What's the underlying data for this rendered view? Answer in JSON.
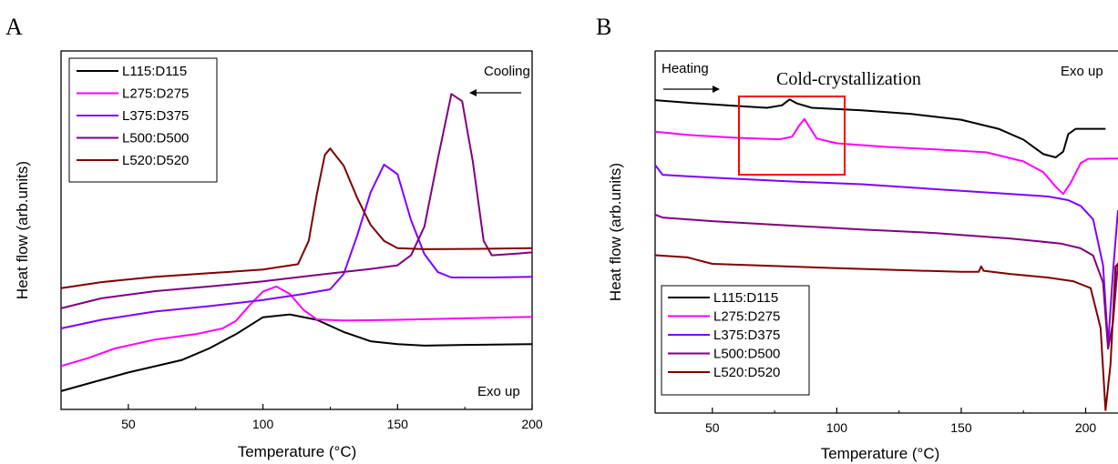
{
  "chart_data": [
    {
      "panel": "A",
      "type": "line",
      "xlabel": "Temperature (°C)",
      "ylabel": "Heat flow (arb.units)",
      "xlim": [
        25,
        200
      ],
      "xticks": [
        50,
        100,
        150,
        200
      ],
      "ylim": [
        0,
        1
      ],
      "yticks_shown": false,
      "grid": false,
      "legend": {
        "placement": "top-left",
        "boxed": true
      },
      "annotations": [
        {
          "text": "Cooling",
          "arrow": "left",
          "placement": "top-right"
        },
        {
          "text": "Exo up",
          "placement": "bottom-right"
        }
      ],
      "series": [
        {
          "name": "L115:D115",
          "color": "#000000",
          "points": [
            [
              25,
              0.051
            ],
            [
              35,
              0.072
            ],
            [
              50,
              0.103
            ],
            [
              70,
              0.138
            ],
            [
              80,
              0.17
            ],
            [
              90,
              0.21
            ],
            [
              100,
              0.257
            ],
            [
              110,
              0.265
            ],
            [
              120,
              0.25
            ],
            [
              130,
              0.216
            ],
            [
              140,
              0.19
            ],
            [
              150,
              0.182
            ],
            [
              160,
              0.178
            ],
            [
              175,
              0.18
            ],
            [
              200,
              0.182
            ]
          ]
        },
        {
          "name": "L275:D275",
          "color": "#ff00ff",
          "points": [
            [
              25,
              0.121
            ],
            [
              35,
              0.143
            ],
            [
              45,
              0.17
            ],
            [
              60,
              0.195
            ],
            [
              75,
              0.21
            ],
            [
              85,
              0.226
            ],
            [
              90,
              0.247
            ],
            [
              95,
              0.29
            ],
            [
              100,
              0.329
            ],
            [
              105,
              0.343
            ],
            [
              110,
              0.322
            ],
            [
              115,
              0.278
            ],
            [
              120,
              0.251
            ],
            [
              130,
              0.248
            ],
            [
              150,
              0.25
            ],
            [
              175,
              0.254
            ],
            [
              200,
              0.258
            ]
          ]
        },
        {
          "name": "L375:D375",
          "color": "#8000ff",
          "points": [
            [
              25,
              0.226
            ],
            [
              40,
              0.25
            ],
            [
              60,
              0.273
            ],
            [
              80,
              0.288
            ],
            [
              100,
              0.305
            ],
            [
              115,
              0.322
            ],
            [
              125,
              0.335
            ],
            [
              130,
              0.378
            ],
            [
              135,
              0.485
            ],
            [
              140,
              0.605
            ],
            [
              145,
              0.683
            ],
            [
              150,
              0.656
            ],
            [
              155,
              0.528
            ],
            [
              160,
              0.433
            ],
            [
              165,
              0.383
            ],
            [
              170,
              0.368
            ],
            [
              185,
              0.368
            ],
            [
              200,
              0.37
            ]
          ]
        },
        {
          "name": "L500:D500",
          "color": "#800080",
          "points": [
            [
              25,
              0.282
            ],
            [
              40,
              0.31
            ],
            [
              60,
              0.33
            ],
            [
              80,
              0.343
            ],
            [
              100,
              0.357
            ],
            [
              120,
              0.375
            ],
            [
              140,
              0.392
            ],
            [
              150,
              0.402
            ],
            [
              155,
              0.43
            ],
            [
              160,
              0.51
            ],
            [
              165,
              0.7
            ],
            [
              170,
              0.88
            ],
            [
              174,
              0.86
            ],
            [
              178,
              0.69
            ],
            [
              182,
              0.47
            ],
            [
              185,
              0.43
            ],
            [
              195,
              0.435
            ],
            [
              200,
              0.438
            ]
          ]
        },
        {
          "name": "L520:D520",
          "color": "#800000",
          "points": [
            [
              25,
              0.338
            ],
            [
              40,
              0.355
            ],
            [
              60,
              0.37
            ],
            [
              80,
              0.38
            ],
            [
              100,
              0.39
            ],
            [
              113,
              0.405
            ],
            [
              117,
              0.47
            ],
            [
              120,
              0.6
            ],
            [
              123,
              0.71
            ],
            [
              125,
              0.728
            ],
            [
              130,
              0.68
            ],
            [
              135,
              0.59
            ],
            [
              140,
              0.515
            ],
            [
              145,
              0.47
            ],
            [
              150,
              0.45
            ],
            [
              160,
              0.447
            ],
            [
              180,
              0.448
            ],
            [
              200,
              0.45
            ]
          ]
        }
      ]
    },
    {
      "panel": "B",
      "type": "line",
      "xlabel": "Temperature (°C)",
      "ylabel": "Heat flow (arb.units)",
      "xlim": [
        27,
        213
      ],
      "xticks": [
        50,
        100,
        150,
        200
      ],
      "ylim": [
        0,
        1
      ],
      "yticks_shown": false,
      "grid": false,
      "legend": {
        "placement": "bottom-left",
        "boxed": true
      },
      "annotations": [
        {
          "text": "Heating",
          "arrow": "right",
          "placement": "top-left"
        },
        {
          "text": "Cold-crystallization",
          "highlight_box": true,
          "x_range": [
            62,
            106
          ],
          "placement": "top"
        },
        {
          "text": "Exo up",
          "placement": "top-right"
        }
      ],
      "series": [
        {
          "name": "L115:D115",
          "color": "#000000",
          "points": [
            [
              27,
              0.864
            ],
            [
              40,
              0.857
            ],
            [
              60,
              0.848
            ],
            [
              72,
              0.843
            ],
            [
              78,
              0.85
            ],
            [
              81,
              0.866
            ],
            [
              84,
              0.855
            ],
            [
              90,
              0.843
            ],
            [
              110,
              0.836
            ],
            [
              130,
              0.826
            ],
            [
              150,
              0.81
            ],
            [
              165,
              0.785
            ],
            [
              175,
              0.755
            ],
            [
              183,
              0.715
            ],
            [
              188,
              0.706
            ],
            [
              191,
              0.722
            ],
            [
              193,
              0.77
            ],
            [
              196,
              0.785
            ],
            [
              208,
              0.785
            ]
          ]
        },
        {
          "name": "L275:D275",
          "color": "#ff00ff",
          "points": [
            [
              27,
              0.777
            ],
            [
              40,
              0.768
            ],
            [
              60,
              0.76
            ],
            [
              77,
              0.756
            ],
            [
              82,
              0.763
            ],
            [
              85,
              0.795
            ],
            [
              87,
              0.812
            ],
            [
              89,
              0.79
            ],
            [
              92,
              0.758
            ],
            [
              100,
              0.745
            ],
            [
              120,
              0.735
            ],
            [
              140,
              0.728
            ],
            [
              160,
              0.72
            ],
            [
              175,
              0.695
            ],
            [
              183,
              0.665
            ],
            [
              188,
              0.625
            ],
            [
              191,
              0.605
            ],
            [
              194,
              0.636
            ],
            [
              198,
              0.69
            ],
            [
              201,
              0.702
            ],
            [
              213,
              0.703
            ]
          ]
        },
        {
          "name": "L375:D375",
          "color": "#8000ff",
          "points": [
            [
              27,
              0.685
            ],
            [
              30,
              0.658
            ],
            [
              50,
              0.65
            ],
            [
              80,
              0.64
            ],
            [
              110,
              0.632
            ],
            [
              140,
              0.618
            ],
            [
              170,
              0.605
            ],
            [
              185,
              0.598
            ],
            [
              193,
              0.588
            ],
            [
              198,
              0.572
            ],
            [
              203,
              0.535
            ],
            [
              207,
              0.408
            ],
            [
              209,
              0.188
            ],
            [
              211,
              0.39
            ],
            [
              213,
              0.56
            ]
          ]
        },
        {
          "name": "L500:D500",
          "color": "#800080",
          "points": [
            [
              27,
              0.548
            ],
            [
              30,
              0.54
            ],
            [
              50,
              0.53
            ],
            [
              80,
              0.518
            ],
            [
              110,
              0.507
            ],
            [
              140,
              0.497
            ],
            [
              170,
              0.482
            ],
            [
              190,
              0.468
            ],
            [
              198,
              0.455
            ],
            [
              203,
              0.435
            ],
            [
              207,
              0.36
            ],
            [
              209,
              0.178
            ],
            [
              211,
              0.25
            ],
            [
              213,
              0.415
            ]
          ]
        },
        {
          "name": "L520:D520",
          "color": "#800000",
          "points": [
            [
              27,
              0.436
            ],
            [
              40,
              0.43
            ],
            [
              50,
              0.412
            ],
            [
              100,
              0.4
            ],
            [
              150,
              0.39
            ],
            [
              157,
              0.39
            ],
            [
              158,
              0.405
            ],
            [
              159,
              0.393
            ],
            [
              170,
              0.384
            ],
            [
              185,
              0.374
            ],
            [
              195,
              0.364
            ],
            [
              202,
              0.345
            ],
            [
              206,
              0.235
            ],
            [
              208,
              0.008
            ],
            [
              210,
              0.135
            ],
            [
              212,
              0.405
            ],
            [
              213,
              0.412
            ]
          ]
        }
      ]
    }
  ]
}
